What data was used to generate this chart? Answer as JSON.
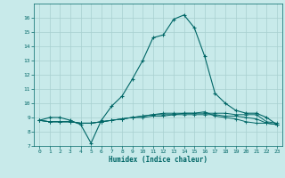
{
  "xlabel": "Humidex (Indice chaleur)",
  "x": [
    0,
    1,
    2,
    3,
    4,
    5,
    6,
    7,
    8,
    9,
    10,
    11,
    12,
    13,
    14,
    15,
    16,
    17,
    18,
    19,
    20,
    21,
    22,
    23
  ],
  "line1": [
    8.8,
    9.0,
    9.0,
    8.8,
    8.5,
    7.2,
    8.8,
    9.8,
    10.5,
    11.7,
    13.0,
    14.6,
    14.8,
    15.9,
    16.2,
    15.3,
    13.3,
    10.7,
    10.0,
    9.5,
    9.3,
    9.3,
    9.0,
    8.5
  ],
  "line2": [
    8.8,
    8.7,
    8.7,
    8.7,
    8.6,
    8.6,
    8.7,
    8.8,
    8.9,
    9.0,
    9.1,
    9.2,
    9.3,
    9.3,
    9.3,
    9.3,
    9.3,
    9.3,
    9.3,
    9.2,
    9.2,
    9.2,
    8.7,
    8.6
  ],
  "line3": [
    8.8,
    8.7,
    8.7,
    8.7,
    8.6,
    8.6,
    8.7,
    8.8,
    8.9,
    9.0,
    9.1,
    9.2,
    9.2,
    9.2,
    9.3,
    9.3,
    9.4,
    9.1,
    9.0,
    8.9,
    8.7,
    8.6,
    8.6,
    8.5
  ],
  "line4": [
    8.8,
    8.7,
    8.7,
    8.7,
    8.6,
    8.6,
    8.7,
    8.8,
    8.9,
    9.0,
    9.0,
    9.1,
    9.1,
    9.2,
    9.2,
    9.2,
    9.2,
    9.2,
    9.1,
    9.1,
    9.0,
    8.9,
    8.6,
    8.5
  ],
  "line_color": "#006666",
  "bg_color": "#c8eaea",
  "grid_color": "#a8d0d0",
  "ylim": [
    7,
    17
  ],
  "xlim": [
    -0.5,
    23.5
  ],
  "yticks": [
    7,
    8,
    9,
    10,
    11,
    12,
    13,
    14,
    15,
    16
  ],
  "xticks": [
    0,
    1,
    2,
    3,
    4,
    5,
    6,
    7,
    8,
    9,
    10,
    11,
    12,
    13,
    14,
    15,
    16,
    17,
    18,
    19,
    20,
    21,
    22,
    23
  ]
}
